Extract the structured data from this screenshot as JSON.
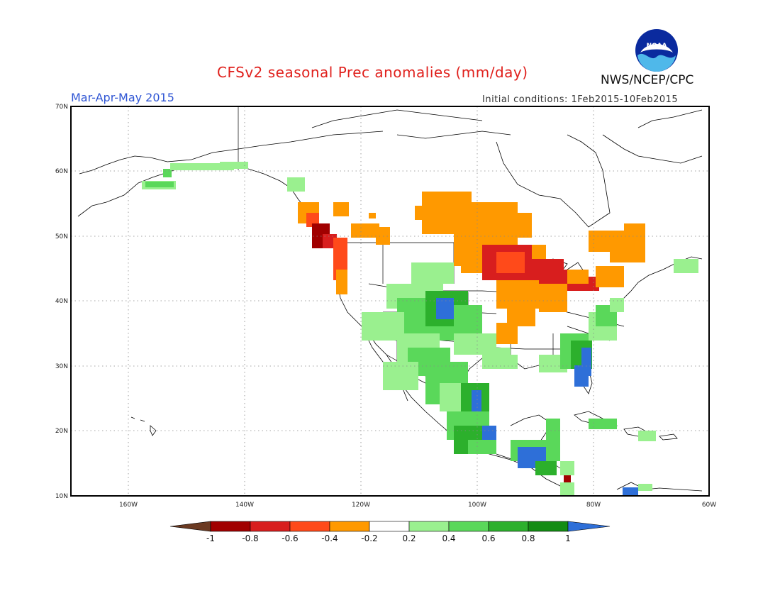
{
  "title": "CFSv2 seasonal Prec anomalies (mm/day)",
  "season": "Mar-Apr-May 2015",
  "agency": "NWS/NCEP/CPC",
  "initial_conditions": "Initial conditions: 1Feb2015-10Feb2015",
  "logo_text": "NOAA",
  "lat_labels": [
    "70N",
    "60N",
    "50N",
    "40N",
    "30N",
    "20N",
    "10N"
  ],
  "lon_labels": [
    "160W",
    "140W",
    "120W",
    "100W",
    "80W",
    "60W"
  ],
  "colorbar": {
    "labels": [
      "-1",
      "-0.8",
      "-0.6",
      "-0.4",
      "-0.2",
      "0.2",
      "0.4",
      "0.6",
      "0.8",
      "1"
    ],
    "colors": [
      "#6b3a22",
      "#a10000",
      "#d81e1e",
      "#ff4a1a",
      "#ff9900",
      "#ffffff",
      "#9af08f",
      "#5ad85a",
      "#2cb02c",
      "#138c13",
      "#2e6fd8"
    ]
  },
  "colors": {
    "brown": "#6b3a22",
    "dark_red": "#a10000",
    "red": "#d81e1e",
    "red_orange": "#ff4a1a",
    "orange": "#ff9900",
    "light_green": "#9af08f",
    "green": "#5ad85a",
    "mid_green": "#2cb02c",
    "dark_green": "#138c13",
    "blue": "#2e6fd8"
  }
}
